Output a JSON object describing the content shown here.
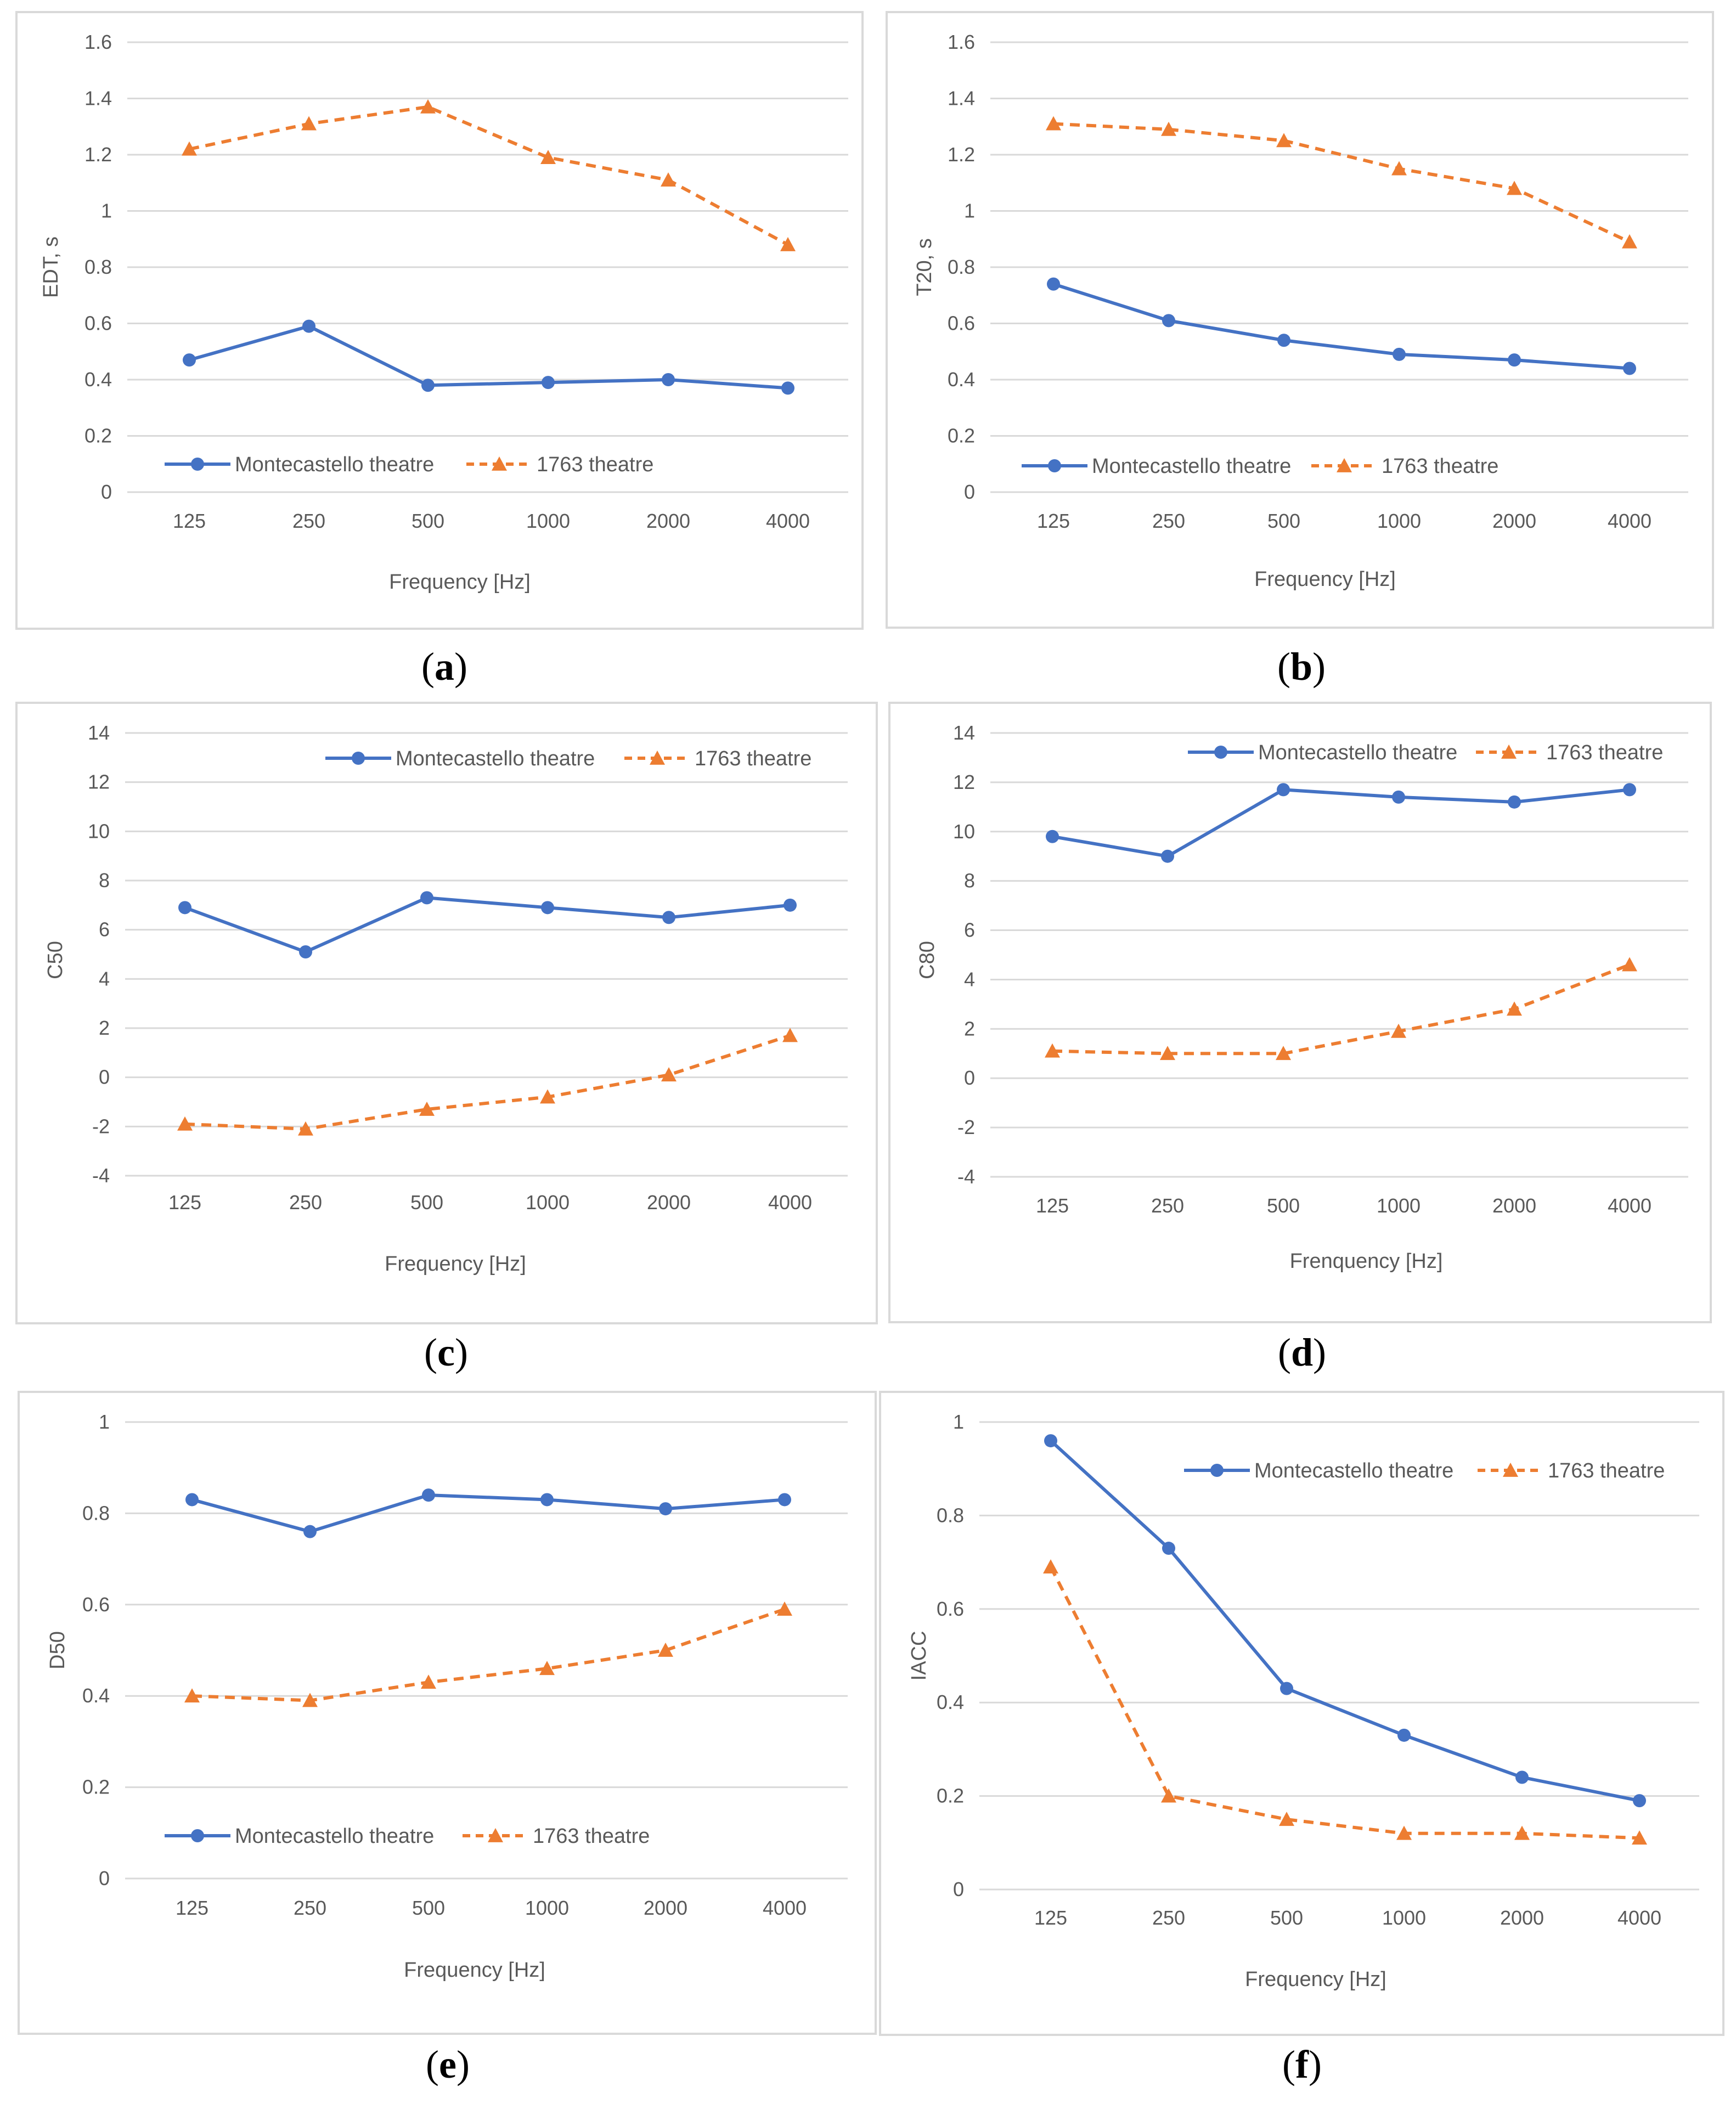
{
  "series_names": [
    "Montecastello theatre",
    "1763 theatre"
  ],
  "colors": {
    "series0": "#4472c4",
    "series1": "#ed7d31"
  },
  "chart_data": [
    {
      "type": "line",
      "panel_label": "(a)",
      "panel_letter": "a",
      "categories": [
        "125",
        "250",
        "500",
        "1000",
        "2000",
        "4000"
      ],
      "series": [
        {
          "name": "Montecastello theatre",
          "values": [
            0.47,
            0.59,
            0.38,
            0.39,
            0.4,
            0.37
          ]
        },
        {
          "name": "1763 theatre",
          "values": [
            1.22,
            1.31,
            1.37,
            1.19,
            1.11,
            0.88
          ]
        }
      ],
      "xlabel": "Frequency [Hz]",
      "ylabel": "EDT, s",
      "ylim": [
        0,
        1.6
      ],
      "yticks": [
        "0",
        "0.2",
        "0.4",
        "0.6",
        "0.8",
        "1",
        "1.2",
        "1.4",
        "1.6"
      ],
      "legend_position": "bottom",
      "grid": true
    },
    {
      "type": "line",
      "panel_label": "(b)",
      "panel_letter": "b",
      "categories": [
        "125",
        "250",
        "500",
        "1000",
        "2000",
        "4000"
      ],
      "series": [
        {
          "name": "Montecastello theatre",
          "values": [
            0.74,
            0.61,
            0.54,
            0.49,
            0.47,
            0.44
          ]
        },
        {
          "name": "1763 theatre",
          "values": [
            1.31,
            1.29,
            1.25,
            1.15,
            1.08,
            0.89
          ]
        }
      ],
      "xlabel": "Frequency [Hz]",
      "ylabel": "T20, s",
      "ylim": [
        0,
        1.6
      ],
      "yticks": [
        "0",
        "0.2",
        "0.4",
        "0.6",
        "0.8",
        "1",
        "1.2",
        "1.4",
        "1.6"
      ],
      "legend_position": "bottom",
      "grid": true
    },
    {
      "type": "line",
      "panel_label": "(c)",
      "panel_letter": "c",
      "categories": [
        "125",
        "250",
        "500",
        "1000",
        "2000",
        "4000"
      ],
      "series": [
        {
          "name": "Montecastello theatre",
          "values": [
            6.9,
            5.1,
            7.3,
            6.9,
            6.5,
            7.0
          ]
        },
        {
          "name": "1763 theatre",
          "values": [
            -1.9,
            -2.1,
            -1.3,
            -0.8,
            0.1,
            1.7
          ]
        }
      ],
      "xlabel": "Frequency [Hz]",
      "ylabel": "C50",
      "ylim": [
        -4,
        14
      ],
      "yticks": [
        "-4",
        "-2",
        "0",
        "2",
        "4",
        "6",
        "8",
        "10",
        "12",
        "14"
      ],
      "legend_position": "top",
      "grid": true
    },
    {
      "type": "line",
      "panel_label": "(d)",
      "panel_letter": "d",
      "categories": [
        "125",
        "250",
        "500",
        "1000",
        "2000",
        "4000"
      ],
      "series": [
        {
          "name": "Montecastello theatre",
          "values": [
            9.8,
            9.0,
            11.7,
            11.4,
            11.2,
            11.7
          ]
        },
        {
          "name": "1763 theatre",
          "values": [
            1.1,
            1.0,
            1.0,
            1.9,
            2.8,
            4.6
          ]
        }
      ],
      "xlabel": "Frenquency [Hz]",
      "ylabel": "C80",
      "ylim": [
        -4,
        14
      ],
      "yticks": [
        "-4",
        "-2",
        "0",
        "2",
        "4",
        "6",
        "8",
        "10",
        "12",
        "14"
      ],
      "legend_position": "top",
      "grid": true
    },
    {
      "type": "line",
      "panel_label": "(e)",
      "panel_letter": "e",
      "categories": [
        "125",
        "250",
        "500",
        "1000",
        "2000",
        "4000"
      ],
      "series": [
        {
          "name": "Montecastello theatre",
          "values": [
            0.83,
            0.76,
            0.84,
            0.83,
            0.81,
            0.83
          ]
        },
        {
          "name": "1763 theatre",
          "values": [
            0.4,
            0.39,
            0.43,
            0.46,
            0.5,
            0.59
          ]
        }
      ],
      "xlabel": "Frequency [Hz]",
      "ylabel": "D50",
      "ylim": [
        0,
        1
      ],
      "yticks": [
        "0",
        "0.2",
        "0.4",
        "0.6",
        "0.8",
        "1"
      ],
      "legend_position": "bottom",
      "grid": true
    },
    {
      "type": "line",
      "panel_label": "(f)",
      "panel_letter": "f",
      "categories": [
        "125",
        "250",
        "500",
        "1000",
        "2000",
        "4000"
      ],
      "series": [
        {
          "name": "Montecastello theatre",
          "values": [
            0.96,
            0.73,
            0.43,
            0.33,
            0.24,
            0.19
          ]
        },
        {
          "name": "1763 theatre",
          "values": [
            0.69,
            0.2,
            0.15,
            0.12,
            0.12,
            0.11
          ]
        }
      ],
      "xlabel": "Frequency [Hz]",
      "ylabel": "IACC",
      "ylim": [
        0,
        1
      ],
      "yticks": [
        "0",
        "0.2",
        "0.4",
        "0.6",
        "0.8",
        "1"
      ],
      "legend_position": "top",
      "grid": true
    }
  ]
}
